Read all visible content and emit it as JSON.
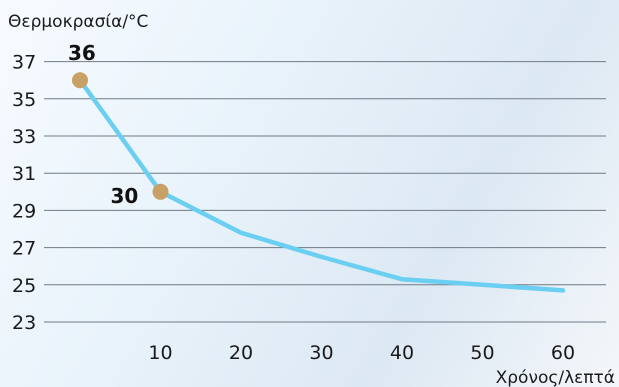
{
  "chart_data": {
    "type": "line",
    "ylabel": "Θερμοκρασία/°C",
    "xlabel": "Χρόνος/λεπτά",
    "yticks": [
      23,
      25,
      27,
      29,
      31,
      33,
      35,
      37
    ],
    "xticks": [
      10,
      20,
      30,
      40,
      50,
      60
    ],
    "xlim": [
      0,
      60
    ],
    "ylim": [
      23,
      37
    ],
    "grid": "horizontal",
    "series": [
      {
        "color": "#6bcff2",
        "x": [
          0,
          10,
          20,
          30,
          40,
          50,
          60
        ],
        "y": [
          36,
          30,
          27.8,
          26.5,
          25.3,
          25.0,
          24.7
        ]
      }
    ],
    "highlighted_points": [
      {
        "x": 0,
        "y": 36,
        "label": "36",
        "color": "#c9a065"
      },
      {
        "x": 10,
        "y": 30,
        "label": "30",
        "color": "#c9a065"
      }
    ]
  }
}
